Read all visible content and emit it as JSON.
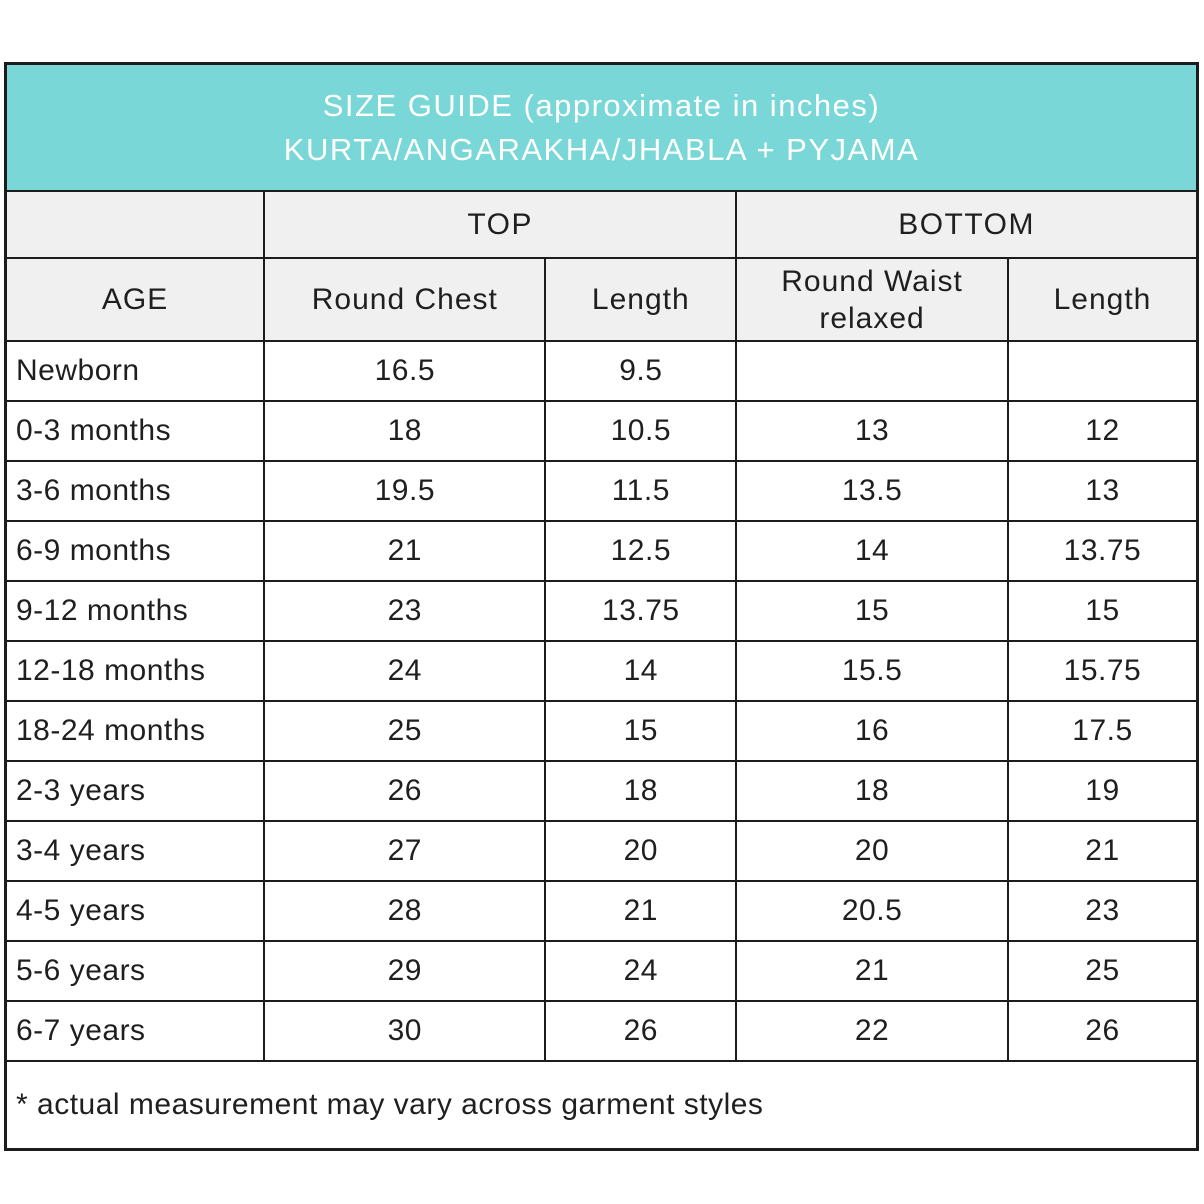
{
  "colors": {
    "title_band_bg": "#7ad7d7",
    "title_band_text": "#ffffff",
    "header_row_bg": "#f0f0f0",
    "body_bg": "#ffffff",
    "border": "#1c1c1c",
    "text": "#1f1f1f"
  },
  "title": {
    "line1": "SIZE GUIDE (approximate in inches)",
    "line2": "KURTA/ANGARAKHA/JHABLA + PYJAMA"
  },
  "groups": {
    "top": "TOP",
    "bottom": "BOTTOM"
  },
  "columns": {
    "age": "AGE",
    "round_chest": "Round Chest",
    "top_length": "Length",
    "round_waist": "Round Waist relaxed",
    "bottom_length": "Length"
  },
  "rows": [
    {
      "age": "Newborn",
      "chest": "16.5",
      "top_length": "9.5",
      "waist": "",
      "bottom_length": ""
    },
    {
      "age": "0-3 months",
      "chest": "18",
      "top_length": "10.5",
      "waist": "13",
      "bottom_length": "12"
    },
    {
      "age": "3-6 months",
      "chest": "19.5",
      "top_length": "11.5",
      "waist": "13.5",
      "bottom_length": "13"
    },
    {
      "age": "6-9 months",
      "chest": "21",
      "top_length": "12.5",
      "waist": "14",
      "bottom_length": "13.75"
    },
    {
      "age": "9-12 months",
      "chest": "23",
      "top_length": "13.75",
      "waist": "15",
      "bottom_length": "15"
    },
    {
      "age": "12-18 months",
      "chest": "24",
      "top_length": "14",
      "waist": "15.5",
      "bottom_length": "15.75"
    },
    {
      "age": "18-24 months",
      "chest": "25",
      "top_length": "15",
      "waist": "16",
      "bottom_length": "17.5"
    },
    {
      "age": "2-3 years",
      "chest": "26",
      "top_length": "18",
      "waist": "18",
      "bottom_length": "19"
    },
    {
      "age": "3-4 years",
      "chest": "27",
      "top_length": "20",
      "waist": "20",
      "bottom_length": "21"
    },
    {
      "age": "4-5 years",
      "chest": "28",
      "top_length": "21",
      "waist": "20.5",
      "bottom_length": "23"
    },
    {
      "age": "5-6 years",
      "chest": "29",
      "top_length": "24",
      "waist": "21",
      "bottom_length": "25"
    },
    {
      "age": "6-7 years",
      "chest": "30",
      "top_length": "26",
      "waist": "22",
      "bottom_length": "26"
    }
  ],
  "footnote": "* actual measurement may vary across garment styles"
}
